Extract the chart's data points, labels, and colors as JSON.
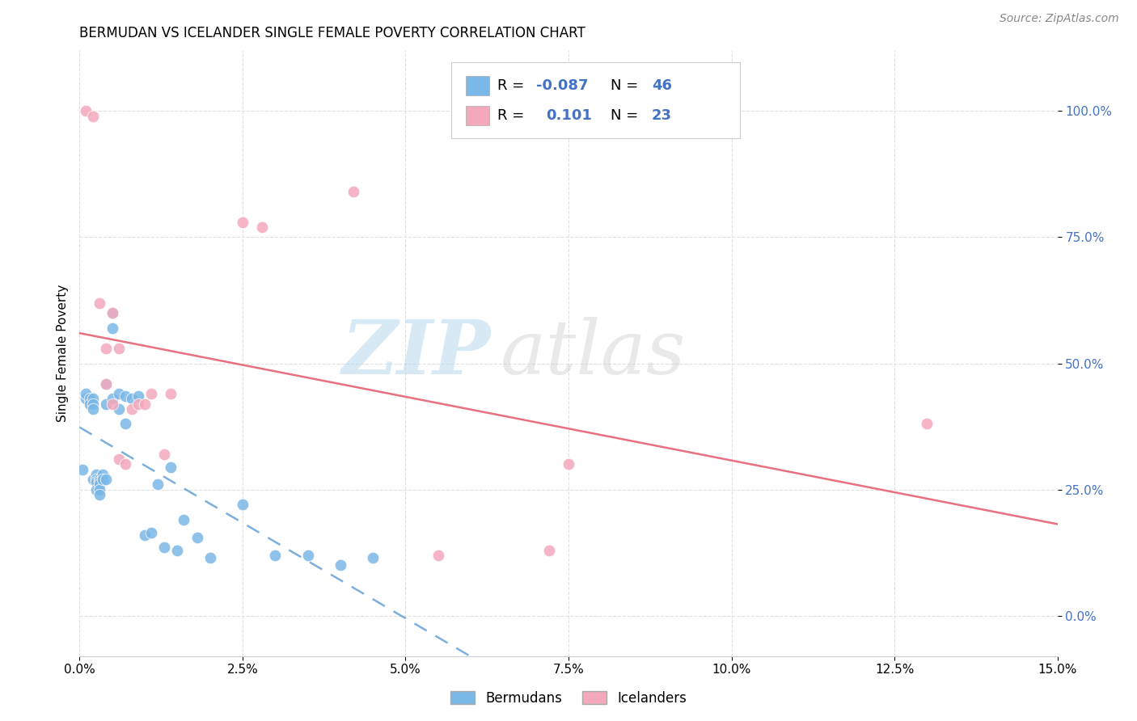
{
  "title": "BERMUDAN VS ICELANDER SINGLE FEMALE POVERTY CORRELATION CHART",
  "source": "Source: ZipAtlas.com",
  "ylabel": "Single Female Poverty",
  "legend_label_1": "Bermudans",
  "legend_label_2": "Icelanders",
  "r1": "-0.087",
  "n1": "46",
  "r2": "0.101",
  "n2": "23",
  "color_blue": "#7ab8e8",
  "color_pink": "#f4a8bc",
  "color_blue_line": "#5b9bd5",
  "color_pink_line": "#e87080",
  "color_axis_blue": "#4472c4",
  "xmin": 0.0,
  "xmax": 0.15,
  "ymin": -0.08,
  "ymax": 1.12,
  "bermudans_x": [
    0.0005,
    0.001,
    0.001,
    0.0015,
    0.0015,
    0.002,
    0.002,
    0.002,
    0.002,
    0.0025,
    0.0025,
    0.0025,
    0.0025,
    0.003,
    0.003,
    0.003,
    0.003,
    0.003,
    0.0035,
    0.0035,
    0.004,
    0.004,
    0.004,
    0.005,
    0.005,
    0.005,
    0.006,
    0.006,
    0.007,
    0.007,
    0.008,
    0.009,
    0.01,
    0.011,
    0.012,
    0.013,
    0.014,
    0.015,
    0.016,
    0.018,
    0.02,
    0.025,
    0.03,
    0.035,
    0.04,
    0.045
  ],
  "bermudans_y": [
    0.29,
    0.43,
    0.44,
    0.43,
    0.42,
    0.43,
    0.42,
    0.41,
    0.27,
    0.28,
    0.27,
    0.265,
    0.25,
    0.27,
    0.265,
    0.26,
    0.25,
    0.24,
    0.28,
    0.27,
    0.46,
    0.42,
    0.27,
    0.6,
    0.57,
    0.43,
    0.44,
    0.41,
    0.435,
    0.38,
    0.43,
    0.435,
    0.16,
    0.165,
    0.26,
    0.135,
    0.295,
    0.13,
    0.19,
    0.155,
    0.115,
    0.22,
    0.12,
    0.12,
    0.1,
    0.115
  ],
  "icelanders_x": [
    0.001,
    0.002,
    0.003,
    0.004,
    0.004,
    0.005,
    0.005,
    0.006,
    0.006,
    0.007,
    0.008,
    0.009,
    0.01,
    0.011,
    0.013,
    0.014,
    0.025,
    0.028,
    0.042,
    0.055,
    0.072,
    0.075,
    0.13
  ],
  "icelanders_y": [
    1.0,
    0.99,
    0.62,
    0.53,
    0.46,
    0.6,
    0.42,
    0.53,
    0.31,
    0.3,
    0.41,
    0.42,
    0.42,
    0.44,
    0.32,
    0.44,
    0.78,
    0.77,
    0.84,
    0.12,
    0.13,
    0.3,
    0.38
  ],
  "watermark_zip": "ZIP",
  "watermark_atlas": "atlas",
  "grid_color": "#e0e0e0"
}
